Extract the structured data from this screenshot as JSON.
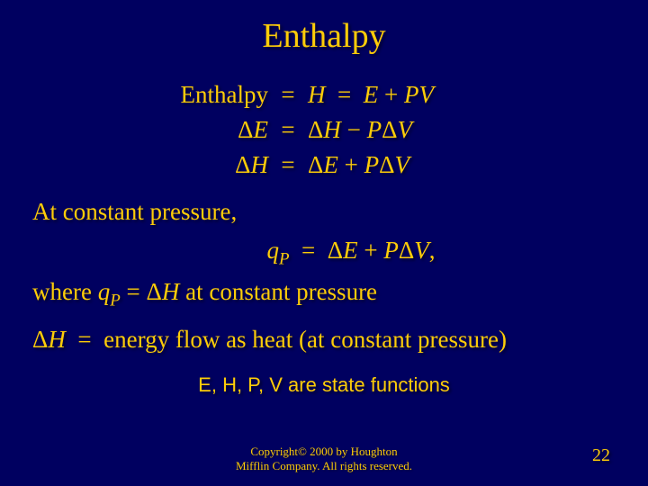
{
  "colors": {
    "background": "#000060",
    "text": "#fdcc09"
  },
  "title": "Enthalpy",
  "equations": {
    "row1": {
      "left": "Enthalpy",
      "eq": "=",
      "right_html": "<span class='ital'>H</span> &nbsp;=&nbsp; <span class='ital'>E</span> + <span class='ital'>PV</span>"
    },
    "row2": {
      "left_html": "Δ<span class='ital'>E</span>",
      "eq": "=",
      "right_html": "Δ<span class='ital'>H</span> − <span class='ital'>P</span>Δ<span class='ital'>V</span>"
    },
    "row3": {
      "left_html": "Δ<span class='ital'>H</span>",
      "eq": "=",
      "right_html": "Δ<span class='ital'>E</span> + <span class='ital'>P</span>Δ<span class='ital'>V</span>"
    }
  },
  "para1": "At constant pressure,",
  "centered_eq_html": "<span class='ital'>q</span><span class='sub'>P</span> &nbsp;=&nbsp; Δ<span class='ital'>E</span> + <span class='ital'>P</span>Δ<span class='ital'>V</span>,",
  "para2_html": "where <span class='ital'>q</span><span class='sub'>P</span> = Δ<span class='ital'>H</span> at constant pressure",
  "para3_html": "Δ<span class='ital'>H</span> &nbsp;=&nbsp; energy flow as heat (at constant pressure)",
  "state_fn": "E, H, P, V are state functions",
  "copyright_line1": "Copyright© 2000 by Houghton",
  "copyright_line2": "Mifflin Company. All rights reserved.",
  "page_number": "22"
}
